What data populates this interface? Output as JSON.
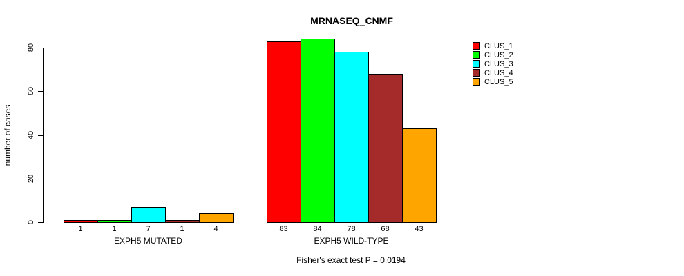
{
  "chart_data": {
    "type": "bar",
    "title": "MRNASEQ_CNMF",
    "ylabel": "number of cases",
    "xlabel": "",
    "caption": "Fisher's exact test P = 0.0194",
    "ylim": [
      0,
      80
    ],
    "yticks": [
      0,
      20,
      40,
      60,
      80
    ],
    "grid": false,
    "legend_position": "top-right-outside",
    "bar_value_labels_shown": true,
    "categories": [
      "EXPH5 MUTATED",
      "EXPH5 WILD-TYPE"
    ],
    "series": [
      {
        "name": "CLUS_1",
        "color": "#FF0000",
        "values": [
          1,
          83
        ]
      },
      {
        "name": "CLUS_2",
        "color": "#00FF00",
        "values": [
          1,
          84
        ]
      },
      {
        "name": "CLUS_3",
        "color": "#00FFFF",
        "values": [
          7,
          78
        ]
      },
      {
        "name": "CLUS_4",
        "color": "#A52A2A",
        "values": [
          1,
          68
        ]
      },
      {
        "name": "CLUS_5",
        "color": "#FFA500",
        "values": [
          4,
          43
        ]
      }
    ]
  },
  "colors": {
    "axis": "#000000",
    "text": "#000000",
    "background": "#FFFFFF"
  }
}
